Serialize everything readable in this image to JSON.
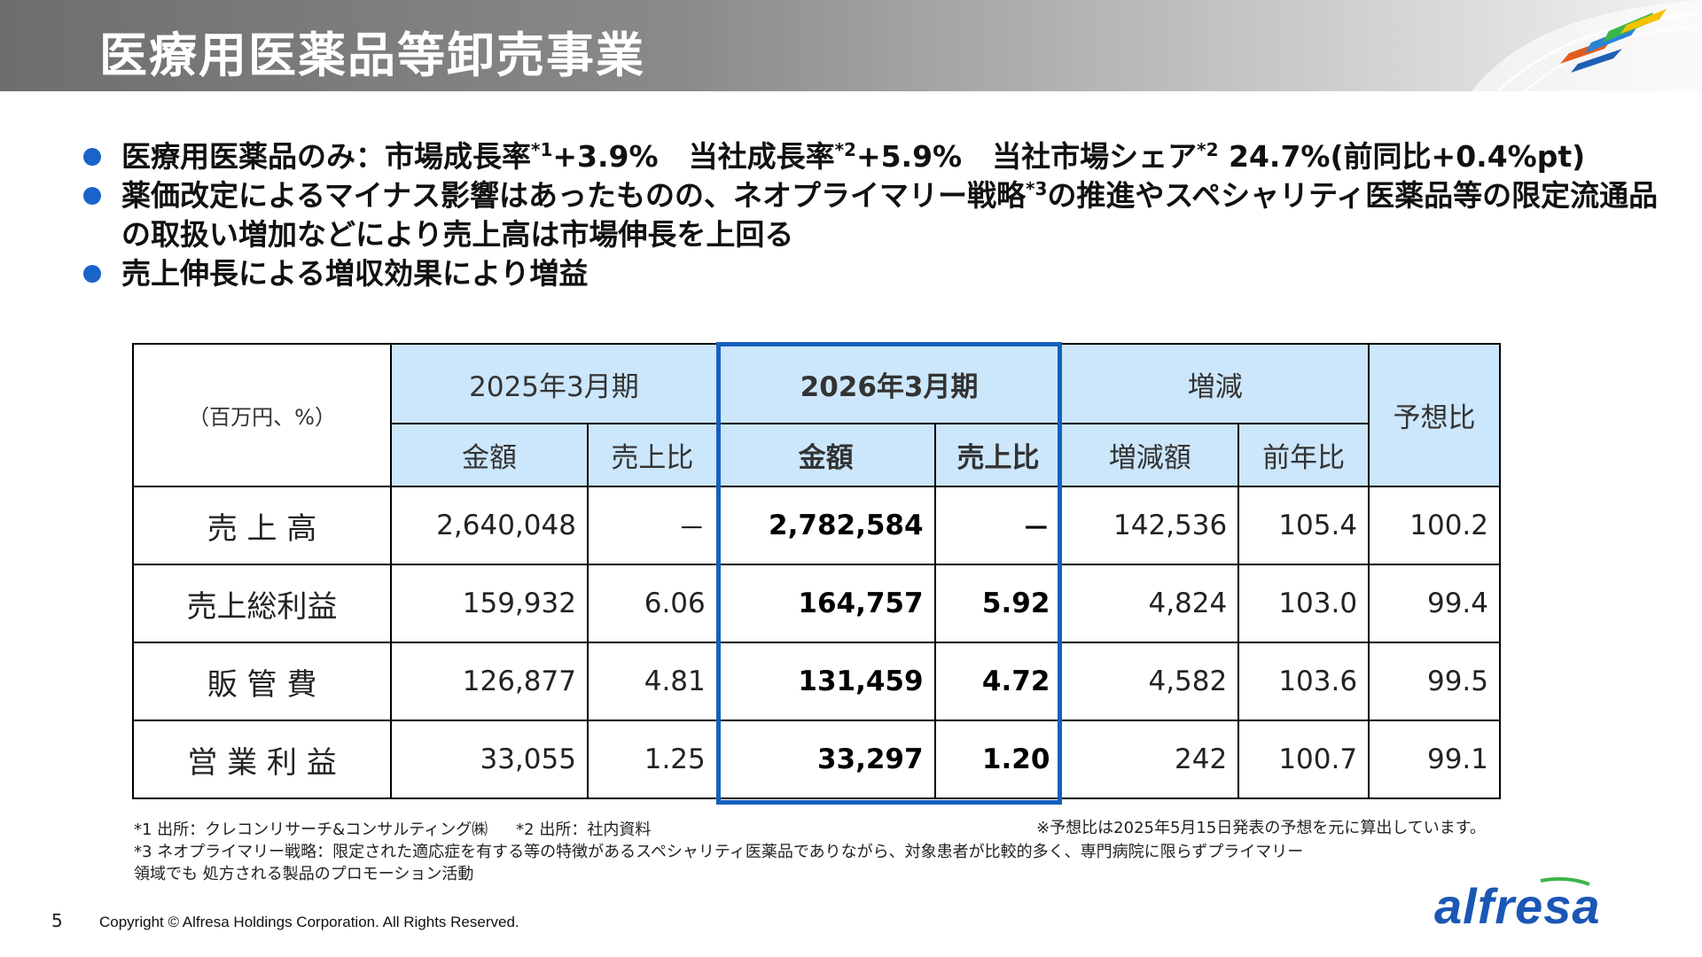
{
  "header": {
    "title": "医療用医薬品等卸売事業"
  },
  "bullets": [
    {
      "segments": [
        "医療用医薬品のみ：市場成長率",
        "*1",
        "+3.9%",
        "当社成長率",
        "*2",
        "+5.9%",
        "当社市場シェア",
        "*2",
        " 24.7%(前同比+0.4%pt)"
      ]
    },
    {
      "segments": [
        "薬価改定によるマイナス影響はあったものの、ネオプライマリー戦略",
        "*3",
        "の推進やスペシャリティ医薬品等の限定流通品の取扱い増加などにより売上高は市場伸長を上回る"
      ]
    },
    {
      "segments": [
        "売上伸長による増収効果により増益"
      ]
    }
  ],
  "table": {
    "unit": "（百万円、%）",
    "period_prev": "2025年3月期",
    "period_curr": "2026年3月期",
    "change": "増減",
    "forecast_ratio": "予想比",
    "col_amount": "金額",
    "col_ratio": "売上比",
    "col_change_amount": "増減額",
    "col_yoy": "前年比",
    "rows": [
      {
        "label": "売 上 高",
        "prev_amount": "2,640,048",
        "prev_ratio": "－",
        "curr_amount": "2,782,584",
        "curr_ratio": "－",
        "change_amount": "142,536",
        "yoy": "105.4",
        "forecast": "100.2"
      },
      {
        "label": "売上総利益",
        "prev_amount": "159,932",
        "prev_ratio": "6.06",
        "curr_amount": "164,757",
        "curr_ratio": "5.92",
        "change_amount": "4,824",
        "yoy": "103.0",
        "forecast": "99.4"
      },
      {
        "label": "販 管 費",
        "prev_amount": "126,877",
        "prev_ratio": "4.81",
        "curr_amount": "131,459",
        "curr_ratio": "4.72",
        "change_amount": "4,582",
        "yoy": "103.6",
        "forecast": "99.5"
      },
      {
        "label": "営 業 利 益",
        "prev_amount": "33,055",
        "prev_ratio": "1.25",
        "curr_amount": "33,297",
        "curr_ratio": "1.20",
        "change_amount": "242",
        "yoy": "100.7",
        "forecast": "99.1"
      }
    ]
  },
  "notes": {
    "note1": "*1 出所：クレコンリサーチ&コンサルティング㈱",
    "note2": "*2 出所：社内資料",
    "note3_line1": "*3 ネオプライマリー戦略：限定された適応症を有する等の特徴があるスペシャリティ医薬品でありながら、対象患者が比較的多く、専門病院に限らずプライマリー",
    "note3_line2": "領域でも 処方される製品のプロモーション活動",
    "forecast_note": "※予想比は2025年5月15日発表の予想を元に算出しています。"
  },
  "footer": {
    "page": "5",
    "copyright": "Copyright © Alfresa Holdings Corporation. All Rights Reserved.",
    "logo": "alfresa"
  },
  "colors": {
    "accent": "#1560bd",
    "header_fill": "#cce6fb"
  }
}
